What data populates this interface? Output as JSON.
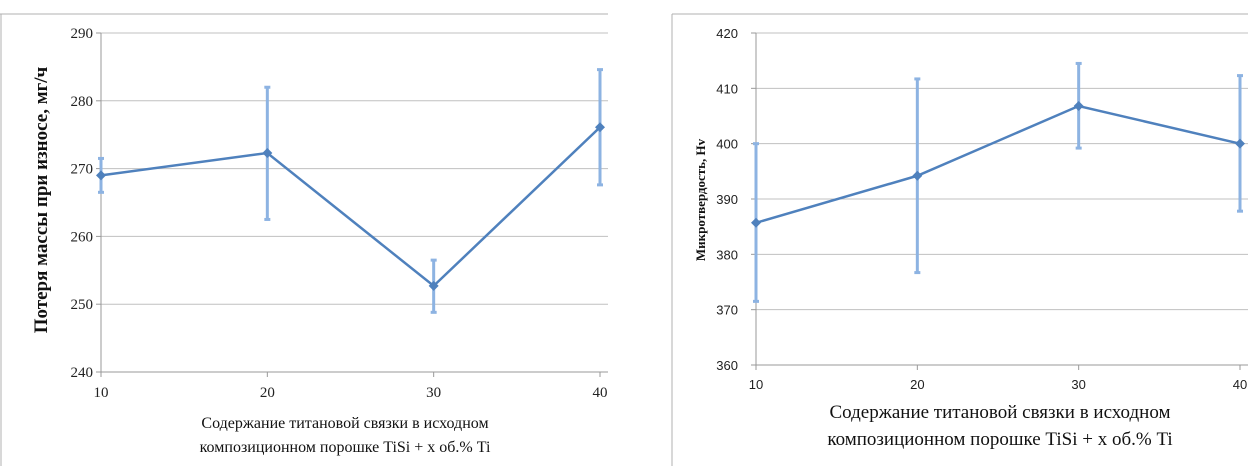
{
  "colors": {
    "series": "#4f81bd",
    "grid": "#c0c0c0",
    "axis": "#999999"
  },
  "chart_data": [
    {
      "type": "line",
      "title": "",
      "ylabel": "Потеря массы при износе, мг/ч",
      "xlabel_lines": [
        "Содержание титановой связки в исходном",
        "композиционном порошке TiSi + x об.% Ti"
      ],
      "x": [
        10,
        20,
        30,
        40
      ],
      "xlim": [
        10,
        40
      ],
      "ylim": [
        240,
        290
      ],
      "x_ticks": [
        "10",
        "20",
        "30",
        "40"
      ],
      "y_ticks": [
        "240",
        "250",
        "260",
        "270",
        "280",
        "290"
      ],
      "grid": "horizontal",
      "series": [
        {
          "values": [
            269,
            272.3,
            252.7,
            276.1
          ],
          "error_low": [
            266.5,
            262.5,
            248.8,
            267.6
          ],
          "error_high": [
            271.5,
            282,
            256.5,
            284.6
          ]
        }
      ]
    },
    {
      "type": "line",
      "title": "",
      "ylabel": "Микротвердость, Hv",
      "xlabel_lines": [
        "Содержание титановой связки в исходном",
        "композиционном порошке TiSi + x об.% Ti"
      ],
      "x": [
        10,
        20,
        30,
        40
      ],
      "xlim": [
        10,
        40
      ],
      "ylim": [
        360,
        420
      ],
      "x_ticks": [
        "10",
        "20",
        "30",
        "40"
      ],
      "y_ticks": [
        "360",
        "370",
        "380",
        "390",
        "400",
        "410",
        "420"
      ],
      "grid": "horizontal",
      "series": [
        {
          "values": [
            385.7,
            394.2,
            406.8,
            400
          ],
          "error_low": [
            371.5,
            376.7,
            399.2,
            387.8
          ],
          "error_high": [
            400,
            411.7,
            414.5,
            412.3
          ]
        }
      ]
    }
  ]
}
